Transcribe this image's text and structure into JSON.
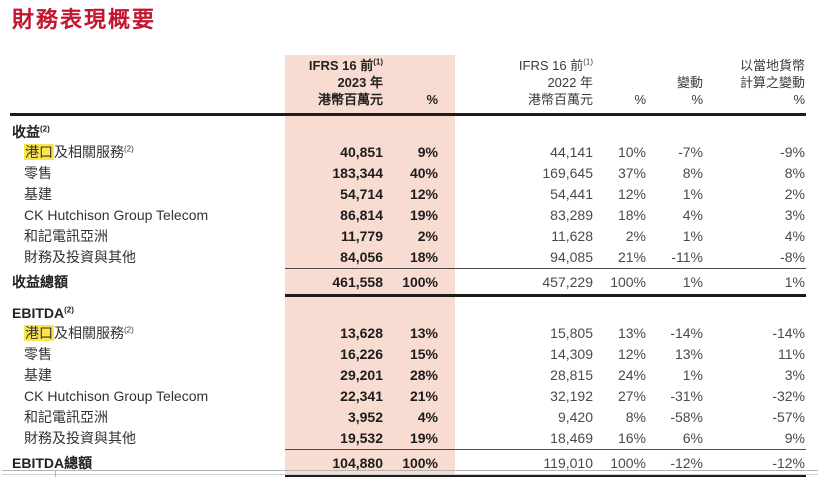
{
  "title": "財務表現概要",
  "colors": {
    "title_red": "#C3152E",
    "pink_band": "#F9DCD1",
    "highlight_yellow": "#FBE54D"
  },
  "table": {
    "headers": {
      "y2023": {
        "line1": "IFRS 16 前",
        "sup": "(1)",
        "line2": "2023 年",
        "line3": "港幣百萬元",
        "pct": "%"
      },
      "y2022": {
        "line1": "IFRS 16 前",
        "sup": "(1)",
        "line2": "2022 年",
        "line3": "港幣百萬元",
        "pct": "%"
      },
      "change": {
        "line1": "變動",
        "pct": "%"
      },
      "local": {
        "line1": "以當地貨幣",
        "line2": "計算之變動",
        "pct": "%"
      }
    },
    "sections": [
      {
        "name": "收益",
        "sup": "(2)",
        "rows": [
          {
            "hl": "港口",
            "label": "及相關服務",
            "sup": "(2)",
            "v2023": "40,851",
            "p2023": "9%",
            "v2022": "44,141",
            "p2022": "10%",
            "chg": "-7%",
            "local": "-9%"
          },
          {
            "hl": "",
            "label": "零售",
            "sup": "",
            "v2023": "183,344",
            "p2023": "40%",
            "v2022": "169,645",
            "p2022": "37%",
            "chg": "8%",
            "local": "8%"
          },
          {
            "hl": "",
            "label": "基建",
            "sup": "",
            "v2023": "54,714",
            "p2023": "12%",
            "v2022": "54,441",
            "p2022": "12%",
            "chg": "1%",
            "local": "2%"
          },
          {
            "hl": "",
            "label": "CK Hutchison Group Telecom",
            "sup": "",
            "v2023": "86,814",
            "p2023": "19%",
            "v2022": "83,289",
            "p2022": "18%",
            "chg": "4%",
            "local": "3%"
          },
          {
            "hl": "",
            "label": "和記電訊亞洲",
            "sup": "",
            "v2023": "11,779",
            "p2023": "2%",
            "v2022": "11,628",
            "p2022": "2%",
            "chg": "1%",
            "local": "4%"
          },
          {
            "hl": "",
            "label": "財務及投資與其他",
            "sup": "",
            "v2023": "84,056",
            "p2023": "18%",
            "v2022": "94,085",
            "p2022": "21%",
            "chg": "-11%",
            "local": "-8%"
          }
        ],
        "total": {
          "label": "收益總額",
          "v2023": "461,558",
          "p2023": "100%",
          "v2022": "457,229",
          "p2022": "100%",
          "chg": "1%",
          "local": "1%"
        }
      },
      {
        "name": "EBITDA",
        "sup": "(2)",
        "rows": [
          {
            "hl": "港口",
            "label": "及相關服務",
            "sup": "(2)",
            "v2023": "13,628",
            "p2023": "13%",
            "v2022": "15,805",
            "p2022": "13%",
            "chg": "-14%",
            "local": "-14%"
          },
          {
            "hl": "",
            "label": "零售",
            "sup": "",
            "v2023": "16,226",
            "p2023": "15%",
            "v2022": "14,309",
            "p2022": "12%",
            "chg": "13%",
            "local": "11%"
          },
          {
            "hl": "",
            "label": "基建",
            "sup": "",
            "v2023": "29,201",
            "p2023": "28%",
            "v2022": "28,815",
            "p2022": "24%",
            "chg": "1%",
            "local": "3%"
          },
          {
            "hl": "",
            "label": "CK Hutchison Group Telecom",
            "sup": "",
            "v2023": "22,341",
            "p2023": "21%",
            "v2022": "32,192",
            "p2022": "27%",
            "chg": "-31%",
            "local": "-32%"
          },
          {
            "hl": "",
            "label": "和記電訊亞洲",
            "sup": "",
            "v2023": "3,952",
            "p2023": "4%",
            "v2022": "9,420",
            "p2022": "8%",
            "chg": "-58%",
            "local": "-57%"
          },
          {
            "hl": "",
            "label": "財務及投資與其他",
            "sup": "",
            "v2023": "19,532",
            "p2023": "19%",
            "v2022": "18,469",
            "p2022": "16%",
            "chg": "6%",
            "local": "9%"
          }
        ],
        "total": {
          "label": "EBITDA總額",
          "v2023": "104,880",
          "p2023": "100%",
          "v2022": "119,010",
          "p2022": "100%",
          "chg": "-12%",
          "local": "-12%"
        }
      }
    ]
  }
}
